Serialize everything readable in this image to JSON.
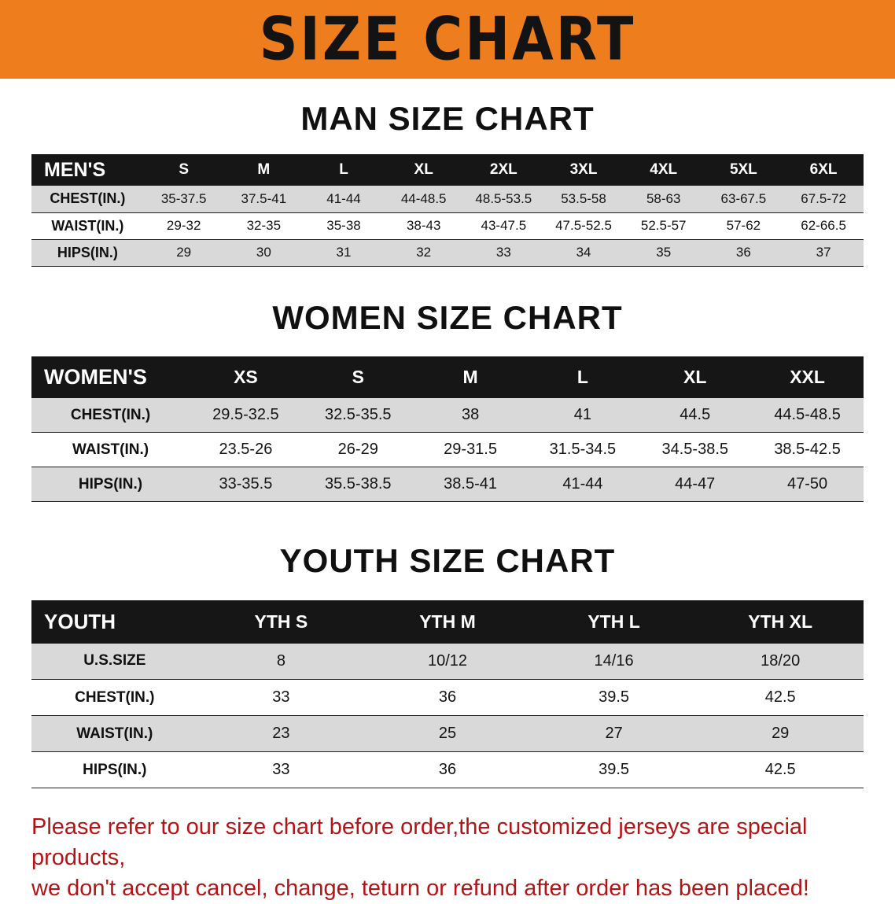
{
  "banner": {
    "title": "SIZE CHART"
  },
  "sections": [
    {
      "id": "man",
      "title": "MAN SIZE CHART",
      "table": {
        "header": [
          "MEN'S",
          "S",
          "M",
          "L",
          "XL",
          "2XL",
          "3XL",
          "4XL",
          "5XL",
          "6XL"
        ],
        "rows": [
          [
            "CHEST(IN.)",
            "35-37.5",
            "37.5-41",
            "41-44",
            "44-48.5",
            "48.5-53.5",
            "53.5-58",
            "58-63",
            "63-67.5",
            "67.5-72"
          ],
          [
            "WAIST(IN.)",
            "29-32",
            "32-35",
            "35-38",
            "38-43",
            "43-47.5",
            "47.5-52.5",
            "52.5-57",
            "57-62",
            "62-66.5"
          ],
          [
            "HIPS(IN.)",
            "29",
            "30",
            "31",
            "32",
            "33",
            "34",
            "35",
            "36",
            "37"
          ]
        ]
      }
    },
    {
      "id": "women",
      "title": "WOMEN SIZE CHART",
      "table": {
        "header": [
          "WOMEN'S",
          "XS",
          "S",
          "M",
          "L",
          "XL",
          "XXL"
        ],
        "rows": [
          [
            "CHEST(IN.)",
            "29.5-32.5",
            "32.5-35.5",
            "38",
            "41",
            "44.5",
            "44.5-48.5"
          ],
          [
            "WAIST(IN.)",
            "23.5-26",
            "26-29",
            "29-31.5",
            "31.5-34.5",
            "34.5-38.5",
            "38.5-42.5"
          ],
          [
            "HIPS(IN.)",
            "33-35.5",
            "35.5-38.5",
            "38.5-41",
            "41-44",
            "44-47",
            "47-50"
          ]
        ]
      }
    },
    {
      "id": "youth",
      "title": "YOUTH SIZE CHART",
      "table": {
        "header": [
          "YOUTH",
          "YTH S",
          "YTH M",
          "YTH L",
          "YTH XL"
        ],
        "rows": [
          [
            "U.S.SIZE",
            "8",
            "10/12",
            "14/16",
            "18/20"
          ],
          [
            "CHEST(IN.)",
            "33",
            "36",
            "39.5",
            "42.5"
          ],
          [
            "WAIST(IN.)",
            "23",
            "25",
            "27",
            "29"
          ],
          [
            "HIPS(IN.)",
            "33",
            "36",
            "39.5",
            "42.5"
          ]
        ]
      }
    }
  ],
  "footer": {
    "line1": "Please refer to our size chart before order,the customized jerseys are special products,",
    "line2": "we don't accept cancel, change, teturn or refund after order has been placed!"
  },
  "colors": {
    "banner_bg": "#ee7d1d",
    "header_bg": "#161616",
    "row_alt": "#d9d9d9",
    "note_red": "#b31414"
  }
}
